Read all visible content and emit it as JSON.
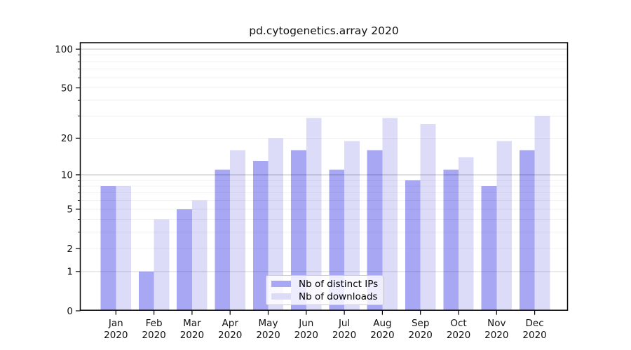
{
  "title": "pd.cytogenetics.array 2020",
  "legend": {
    "items": [
      {
        "label": "Nb of distinct IPs",
        "color": "#a7a7f4"
      },
      {
        "label": "Nb of downloads",
        "color": "#dcdcf8"
      }
    ]
  },
  "axes": {
    "months": [
      "Jan",
      "Feb",
      "Mar",
      "Apr",
      "May",
      "Jun",
      "Jul",
      "Aug",
      "Sep",
      "Oct",
      "Nov",
      "Dec"
    ],
    "x_year": "2020",
    "y_tick_values": [
      0,
      1,
      2,
      5,
      10,
      20,
      50,
      100
    ],
    "y_tick_labels": [
      "0",
      "1",
      "2",
      "5",
      "10",
      "20",
      "50",
      "100"
    ]
  },
  "chart_data": {
    "type": "bar",
    "title": "pd.cytogenetics.array 2020",
    "categories": [
      "Jan 2020",
      "Feb 2020",
      "Mar 2020",
      "Apr 2020",
      "May 2020",
      "Jun 2020",
      "Jul 2020",
      "Aug 2020",
      "Sep 2020",
      "Oct 2020",
      "Nov 2020",
      "Dec 2020"
    ],
    "series": [
      {
        "name": "Nb of distinct IPs",
        "color": "#a7a7f4",
        "values": [
          8,
          1,
          5,
          11,
          13,
          16,
          11,
          16,
          9,
          11,
          8,
          16
        ]
      },
      {
        "name": "Nb of downloads",
        "color": "#dcdcf8",
        "values": [
          8,
          4,
          6,
          16,
          20,
          29,
          19,
          29,
          26,
          14,
          19,
          30
        ]
      }
    ],
    "yscale": "log1p",
    "yticks": [
      0,
      1,
      2,
      5,
      10,
      20,
      50,
      100
    ],
    "ylim": [
      0,
      112
    ],
    "xlabel": "",
    "ylabel": "",
    "grid": true,
    "legend_position": "lower center"
  }
}
